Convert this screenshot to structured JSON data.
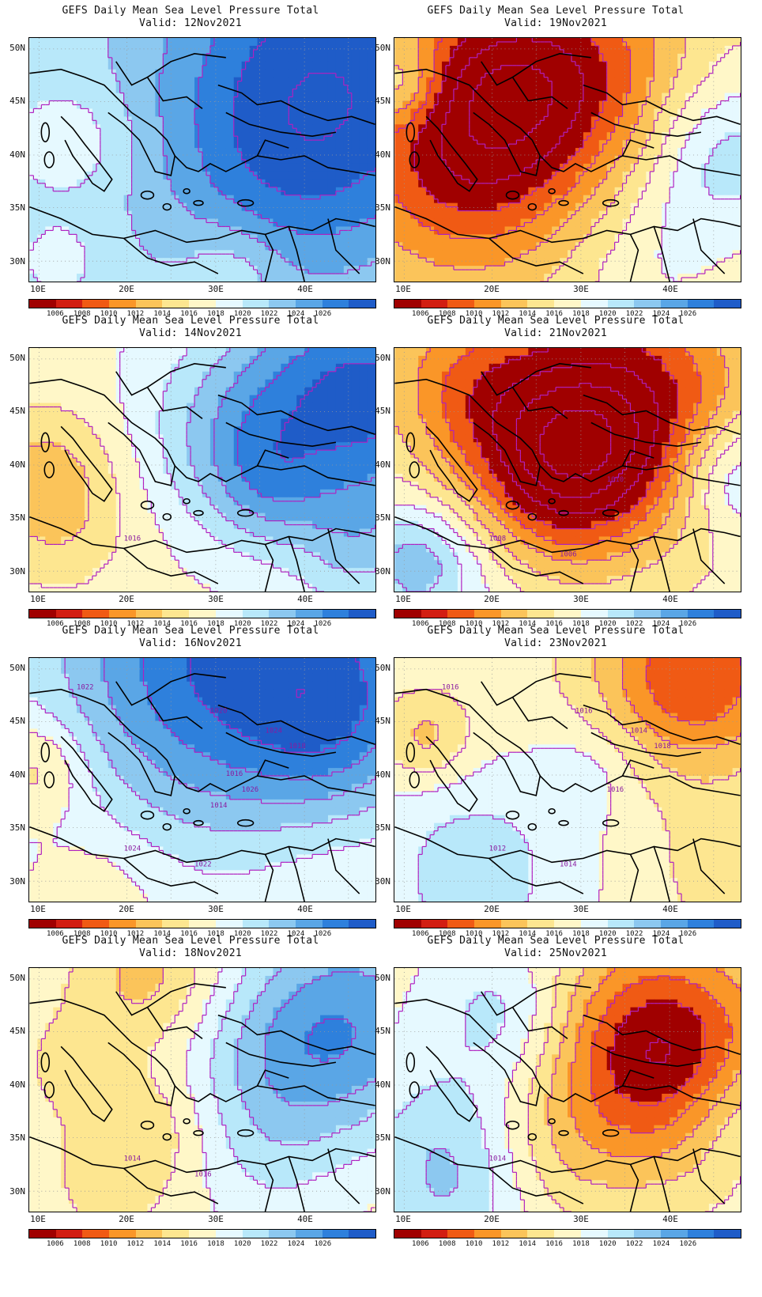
{
  "title_line": "GEFS Daily Mean Sea Level Pressure Total",
  "valid_prefix": "Valid:",
  "lat_labels": [
    "50N",
    "45N",
    "40N",
    "35N",
    "30N"
  ],
  "lon_labels": [
    "10E",
    "20E",
    "30E",
    "40E"
  ],
  "colorbar_labels": [
    "1006",
    "1008",
    "1010",
    "1012",
    "1014",
    "1016",
    "1018",
    "1020",
    "1022",
    "1024",
    "1026"
  ],
  "colorbar_colors": [
    "#a00000",
    "#d21e12",
    "#f05a14",
    "#fa9628",
    "#fbc45a",
    "#fde690",
    "#fff7c8",
    "#e6f9ff",
    "#b8e8fa",
    "#8cc8f0",
    "#5aa6e6",
    "#2e80dc",
    "#1f5cc8"
  ],
  "panels": [
    {
      "date": "12Nov2021",
      "field": "high-east",
      "contour_labels": []
    },
    {
      "date": "19Nov2021",
      "field": "low-west",
      "contour_labels": []
    },
    {
      "date": "14Nov2021",
      "field": "high-northeast",
      "contour_labels": [
        "1016"
      ]
    },
    {
      "date": "21Nov2021",
      "field": "low-center",
      "contour_labels": [
        "1008",
        "1006",
        "1010"
      ]
    },
    {
      "date": "16Nov2021",
      "field": "high-north",
      "contour_labels": [
        "1024",
        "1022",
        "1026",
        "1024",
        "1022",
        "1020",
        "1018",
        "1016",
        "1014"
      ]
    },
    {
      "date": "23Nov2021",
      "field": "low-northeast",
      "contour_labels": [
        "1012",
        "1014",
        "1016",
        "1014",
        "1016",
        "1016",
        "1018"
      ]
    },
    {
      "date": "18Nov2021",
      "field": "mixed",
      "contour_labels": [
        "1014",
        "1016"
      ]
    },
    {
      "date": "25Nov2021",
      "field": "low-east",
      "contour_labels": [
        "1014"
      ]
    }
  ]
}
